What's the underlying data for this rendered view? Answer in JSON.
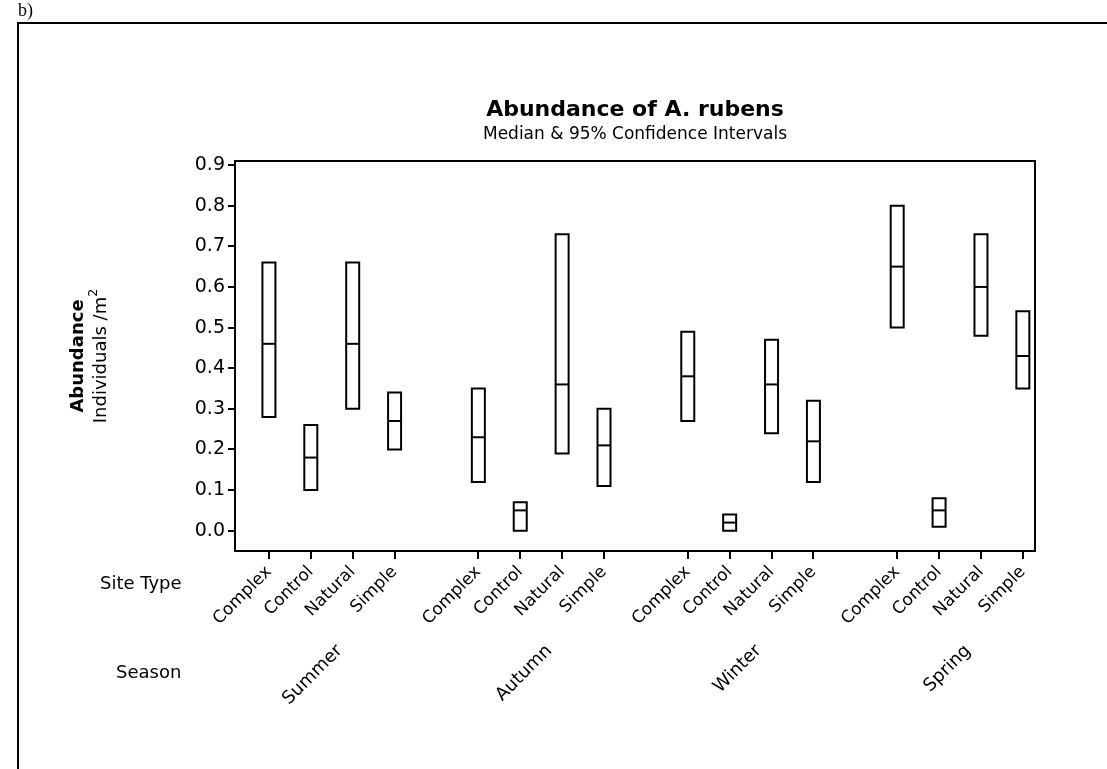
{
  "chart_data": {
    "type": "box",
    "title": "Abundance of A. rubens",
    "subtitle": "Median & 95% Confidence Intervals",
    "ylabel": "Abundance\nIndividuals /m$^{2}$",
    "categories": [
      "Complex",
      "Control",
      "Natural",
      "Simple",
      null,
      "Complex",
      "Control",
      "Natural",
      "Simple",
      null,
      "Complex",
      "Control",
      "Natural",
      "Simple",
      null,
      "Complex",
      "Control",
      "Natural",
      "Simple"
    ],
    "boxes": [
      {
        "low": 0.28,
        "q1": 0.28,
        "median": 0.46,
        "q3": 0.66,
        "high": 0.66
      },
      {
        "low": 0.1,
        "q1": 0.1,
        "median": 0.18,
        "q3": 0.26,
        "high": 0.26
      },
      {
        "low": 0.3,
        "q1": 0.3,
        "median": 0.46,
        "q3": 0.66,
        "high": 0.66
      },
      {
        "low": 0.2,
        "q1": 0.2,
        "median": 0.27,
        "q3": 0.34,
        "high": 0.34
      },
      null,
      {
        "low": 0.12,
        "q1": 0.12,
        "median": 0.23,
        "q3": 0.35,
        "high": 0.35
      },
      {
        "low": 0.0,
        "q1": 0.0,
        "median": 0.05,
        "q3": 0.07,
        "high": 0.07
      },
      {
        "low": 0.19,
        "q1": 0.19,
        "median": 0.36,
        "q3": 0.73,
        "high": 0.73
      },
      {
        "low": 0.11,
        "q1": 0.11,
        "median": 0.21,
        "q3": 0.3,
        "high": 0.3
      },
      null,
      {
        "low": 0.27,
        "q1": 0.27,
        "median": 0.38,
        "q3": 0.49,
        "high": 0.49
      },
      {
        "low": 0.0,
        "q1": 0.0,
        "median": 0.02,
        "q3": 0.04,
        "high": 0.04
      },
      {
        "low": 0.24,
        "q1": 0.24,
        "median": 0.36,
        "q3": 0.47,
        "high": 0.47
      },
      {
        "low": 0.12,
        "q1": 0.12,
        "median": 0.22,
        "q3": 0.32,
        "high": 0.32
      },
      null,
      {
        "low": 0.5,
        "q1": 0.5,
        "median": 0.65,
        "q3": 0.8,
        "high": 0.8
      },
      {
        "low": 0.01,
        "q1": 0.01,
        "median": 0.05,
        "q3": 0.08,
        "high": 0.08
      },
      {
        "low": 0.48,
        "q1": 0.48,
        "median": 0.6,
        "q3": 0.73,
        "high": 0.73
      },
      {
        "low": 0.35,
        "q1": 0.35,
        "median": 0.43,
        "q3": 0.54,
        "high": 0.54
      }
    ],
    "color": "#000000",
    "ylim": [
      -0.05,
      0.91
    ],
    "yticks": [
      {
        "value": 0,
        "label": "0.0"
      },
      {
        "value": 0.1,
        "label": "0.1"
      },
      {
        "value": 0.2,
        "label": "0.2"
      },
      {
        "value": 0.3,
        "label": "0.3"
      },
      {
        "value": 0.4,
        "label": "0.4"
      },
      {
        "value": 0.5,
        "label": "0.5"
      },
      {
        "value": 0.6,
        "label": "0.6"
      },
      {
        "value": 0.7,
        "label": "0.7"
      },
      {
        "value": 0.8,
        "label": "0.8"
      },
      {
        "value": 0.9,
        "label": "0.9"
      }
    ],
    "annotations": [
      "b)",
      "Site Type",
      "Season",
      "Summer",
      "Autumn",
      "Winter",
      "Spring"
    ]
  }
}
